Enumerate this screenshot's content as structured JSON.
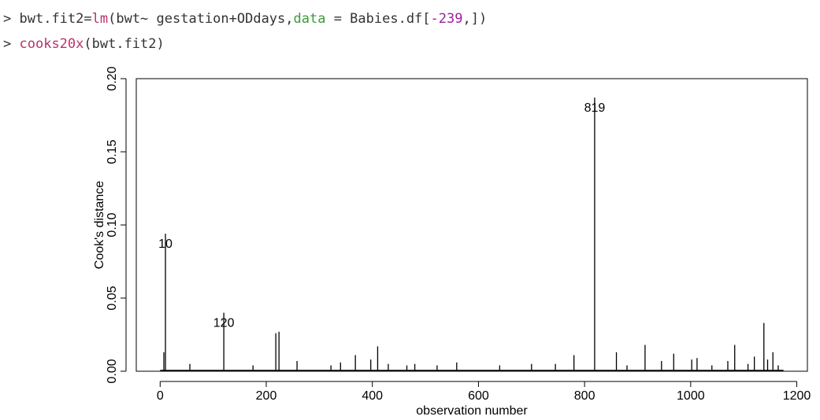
{
  "console": {
    "prompt": ">",
    "line1": {
      "a": "bwt.fit2=",
      "fn": "lm",
      "b": "(bwt~ gestation+ODdays,",
      "arg": "data",
      "c": " = Babies.df[",
      "num": "-239",
      "d": ",])"
    },
    "line2": {
      "fn": "cooks20x",
      "b": "(bwt.fit2)"
    }
  },
  "chart_data": {
    "type": "bar",
    "xlabel": "observation number",
    "ylabel": "Cook's distance",
    "xlim": [
      -45,
      1220
    ],
    "ylim": [
      0,
      0.2
    ],
    "x_ticks": [
      0,
      200,
      400,
      600,
      800,
      1000,
      1200
    ],
    "y_ticks": [
      0.0,
      0.05,
      0.1,
      0.15,
      0.2
    ],
    "y_tick_labels": [
      "0.00",
      "0.05",
      "0.10",
      "0.15",
      "0.20"
    ],
    "spikes": [
      {
        "x": 819,
        "y": 0.187
      },
      {
        "x": 10,
        "y": 0.094
      },
      {
        "x": 120,
        "y": 0.04
      },
      {
        "x": 1138,
        "y": 0.033
      },
      {
        "x": 224,
        "y": 0.027
      },
      {
        "x": 218,
        "y": 0.026
      },
      {
        "x": 1083,
        "y": 0.018
      },
      {
        "x": 914,
        "y": 0.018
      },
      {
        "x": 410,
        "y": 0.017
      },
      {
        "x": 7,
        "y": 0.013
      },
      {
        "x": 860,
        "y": 0.013
      },
      {
        "x": 1155,
        "y": 0.013
      },
      {
        "x": 968,
        "y": 0.012
      },
      {
        "x": 368,
        "y": 0.011
      },
      {
        "x": 780,
        "y": 0.011
      },
      {
        "x": 1120,
        "y": 0.01
      },
      {
        "x": 1012,
        "y": 0.009
      },
      {
        "x": 1002,
        "y": 0.008
      },
      {
        "x": 397,
        "y": 0.008
      },
      {
        "x": 1145,
        "y": 0.008
      },
      {
        "x": 945,
        "y": 0.007
      },
      {
        "x": 258,
        "y": 0.007
      },
      {
        "x": 1070,
        "y": 0.007
      },
      {
        "x": 340,
        "y": 0.006
      },
      {
        "x": 559,
        "y": 0.006
      },
      {
        "x": 56,
        "y": 0.005
      },
      {
        "x": 430,
        "y": 0.005
      },
      {
        "x": 480,
        "y": 0.005
      },
      {
        "x": 1108,
        "y": 0.005
      },
      {
        "x": 700,
        "y": 0.005
      },
      {
        "x": 745,
        "y": 0.005
      },
      {
        "x": 175,
        "y": 0.004
      },
      {
        "x": 322,
        "y": 0.004
      },
      {
        "x": 465,
        "y": 0.004
      },
      {
        "x": 522,
        "y": 0.004
      },
      {
        "x": 640,
        "y": 0.004
      },
      {
        "x": 880,
        "y": 0.004
      },
      {
        "x": 1040,
        "y": 0.004
      },
      {
        "x": 1165,
        "y": 0.004
      }
    ],
    "labels": [
      {
        "x": 819,
        "y": 0.187,
        "text": "819"
      },
      {
        "x": 10,
        "y": 0.094,
        "text": "10"
      },
      {
        "x": 120,
        "y": 0.04,
        "text": "120"
      }
    ]
  }
}
